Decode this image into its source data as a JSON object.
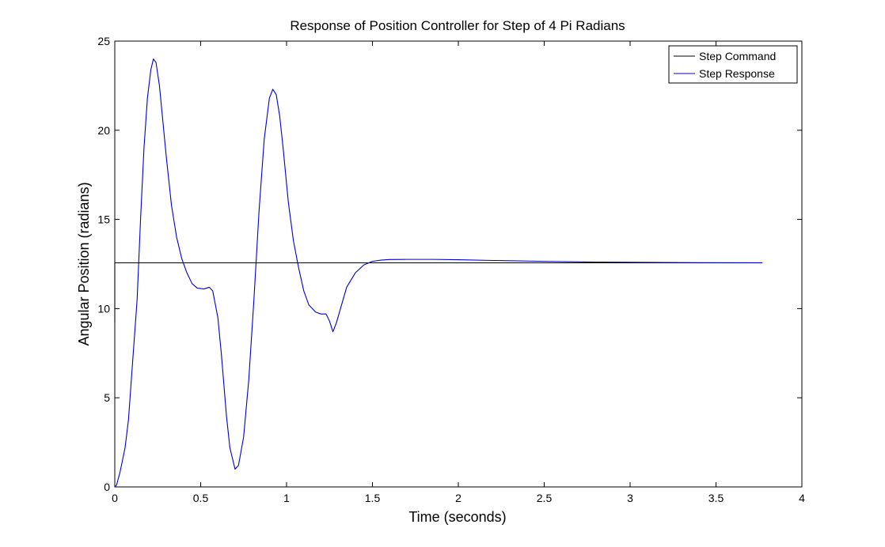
{
  "chart_data": {
    "type": "line",
    "title": "Response of Position Controller for Step of 4 Pi Radians",
    "xlabel": "Time (seconds)",
    "ylabel": "Angular Position (radians)",
    "xlim": [
      0,
      4
    ],
    "ylim": [
      0,
      25
    ],
    "xticks": [
      0,
      0.5,
      1,
      1.5,
      2,
      2.5,
      3,
      3.5,
      4
    ],
    "yticks": [
      0,
      5,
      10,
      15,
      20,
      25
    ],
    "xtick_labels": [
      "0",
      "0.5",
      "1",
      "1.5",
      "2",
      "2.5",
      "3",
      "3.5",
      "4"
    ],
    "ytick_labels": [
      "0",
      "5",
      "10",
      "15",
      "20",
      "25"
    ],
    "grid": false,
    "legend_position": "top-right",
    "series": [
      {
        "name": "Step Command",
        "color": "#000000",
        "points": [
          [
            0,
            11.2
          ],
          [
            0,
            9.2
          ],
          [
            0,
            12.566
          ],
          [
            3.77,
            12.566
          ]
        ]
      },
      {
        "name": "Step Response",
        "color": "#0000cc",
        "points": [
          [
            0,
            0
          ],
          [
            0.01,
            0.1
          ],
          [
            0.03,
            0.8
          ],
          [
            0.06,
            2.2
          ],
          [
            0.08,
            3.8
          ],
          [
            0.1,
            6.5
          ],
          [
            0.13,
            10.5
          ],
          [
            0.15,
            15.0
          ],
          [
            0.17,
            19.0
          ],
          [
            0.19,
            21.8
          ],
          [
            0.21,
            23.4
          ],
          [
            0.225,
            24.0
          ],
          [
            0.24,
            23.8
          ],
          [
            0.26,
            22.5
          ],
          [
            0.28,
            20.5
          ],
          [
            0.3,
            18.5
          ],
          [
            0.33,
            15.8
          ],
          [
            0.36,
            14.0
          ],
          [
            0.39,
            12.8
          ],
          [
            0.42,
            12.0
          ],
          [
            0.45,
            11.4
          ],
          [
            0.48,
            11.15
          ],
          [
            0.52,
            11.1
          ],
          [
            0.55,
            11.2
          ],
          [
            0.57,
            11.0
          ],
          [
            0.6,
            9.5
          ],
          [
            0.62,
            7.5
          ],
          [
            0.65,
            4.0
          ],
          [
            0.67,
            2.2
          ],
          [
            0.7,
            1.0
          ],
          [
            0.72,
            1.2
          ],
          [
            0.75,
            2.8
          ],
          [
            0.78,
            6.0
          ],
          [
            0.81,
            10.5
          ],
          [
            0.84,
            15.5
          ],
          [
            0.87,
            19.5
          ],
          [
            0.9,
            21.8
          ],
          [
            0.92,
            22.3
          ],
          [
            0.94,
            22.0
          ],
          [
            0.96,
            20.8
          ],
          [
            0.98,
            19.0
          ],
          [
            1.01,
            16.0
          ],
          [
            1.04,
            13.8
          ],
          [
            1.07,
            12.3
          ],
          [
            1.1,
            11.0
          ],
          [
            1.13,
            10.2
          ],
          [
            1.17,
            9.8
          ],
          [
            1.2,
            9.7
          ],
          [
            1.23,
            9.7
          ],
          [
            1.25,
            9.3
          ],
          [
            1.27,
            8.7
          ],
          [
            1.29,
            9.2
          ],
          [
            1.32,
            10.2
          ],
          [
            1.35,
            11.2
          ],
          [
            1.4,
            12.0
          ],
          [
            1.45,
            12.45
          ],
          [
            1.5,
            12.65
          ],
          [
            1.55,
            12.72
          ],
          [
            1.6,
            12.75
          ],
          [
            1.7,
            12.76
          ],
          [
            1.85,
            12.76
          ],
          [
            2.0,
            12.74
          ],
          [
            2.2,
            12.7
          ],
          [
            2.5,
            12.65
          ],
          [
            2.8,
            12.61
          ],
          [
            3.1,
            12.59
          ],
          [
            3.4,
            12.575
          ],
          [
            3.77,
            12.57
          ]
        ]
      }
    ]
  }
}
